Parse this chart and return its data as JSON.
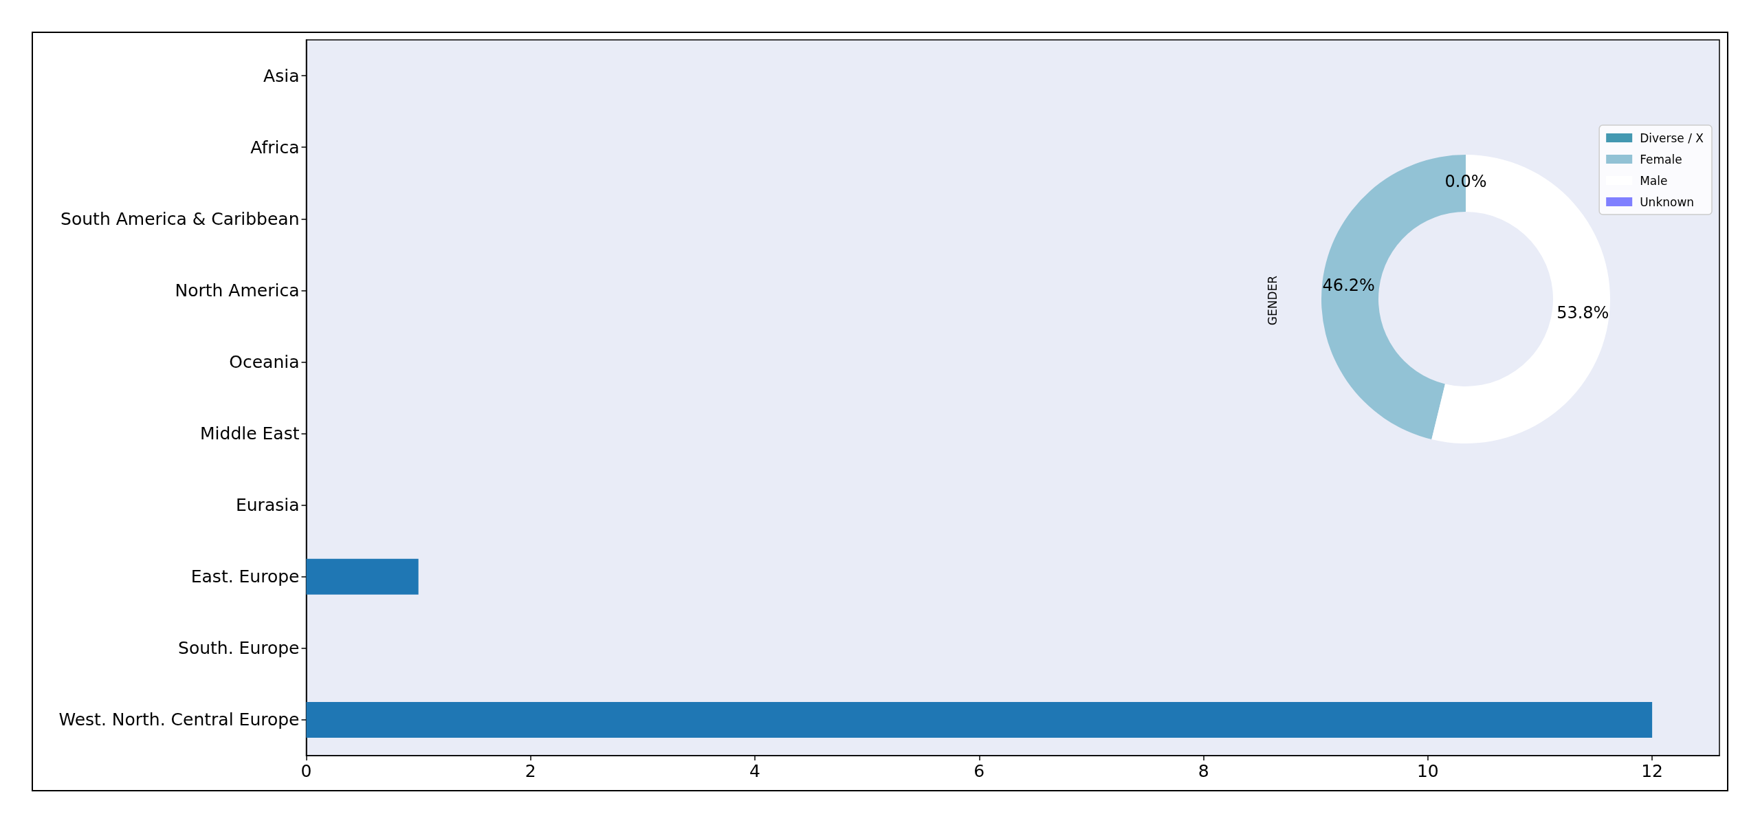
{
  "chart_data": [
    {
      "type": "bar",
      "orientation": "horizontal",
      "categories": [
        "Asia",
        "Africa",
        "South America & Caribbean",
        "North America",
        "Oceania",
        "Middle East",
        "Eurasia",
        "East. Europe",
        "South. Europe",
        "West. North. Central Europe"
      ],
      "values": [
        0,
        0,
        0,
        0,
        0,
        0,
        0,
        1,
        0,
        12
      ],
      "color": "#1f77b4",
      "xlim": [
        0,
        12.6
      ],
      "xticks": [
        0,
        2,
        4,
        6,
        8,
        10,
        12
      ]
    },
    {
      "type": "donut",
      "ylabel": "GENDER",
      "categories": [
        "Diverse / X",
        "Female",
        "Male",
        "Unknown"
      ],
      "values": [
        0,
        46.2,
        53.8,
        0
      ],
      "colors": [
        "#4398b1",
        "#92c2d5",
        "#ffffff",
        "#7f7fff"
      ],
      "value_labels": [
        "0.0%",
        "46.2%",
        "53.8%",
        null
      ],
      "legend": "top right"
    }
  ]
}
